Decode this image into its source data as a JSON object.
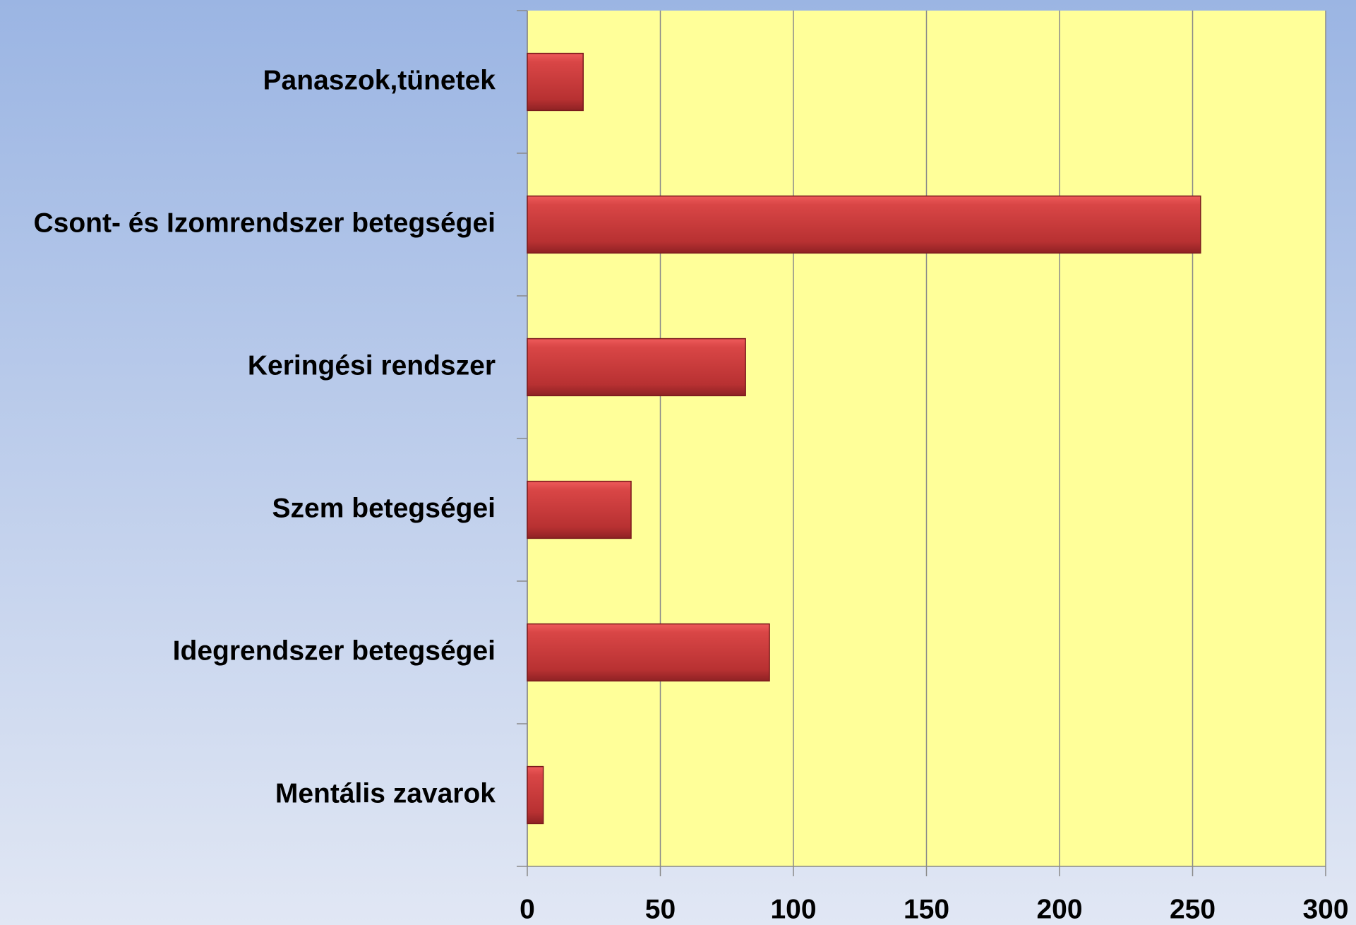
{
  "chart_data": {
    "type": "hbar",
    "categories": [
      "Panaszok,tünetek",
      "Csont- és Izomrendszer betegségei",
      "Keringési rendszer",
      "Szem betegségei",
      "Idegrendszer betegségei",
      "Mentális zavarok"
    ],
    "values": [
      21,
      253,
      82,
      39,
      91,
      6
    ],
    "color": "#c0393b",
    "xlim": [
      0,
      300
    ],
    "xticks": [
      0,
      50,
      100,
      150,
      200,
      250,
      300
    ],
    "grid": true
  }
}
